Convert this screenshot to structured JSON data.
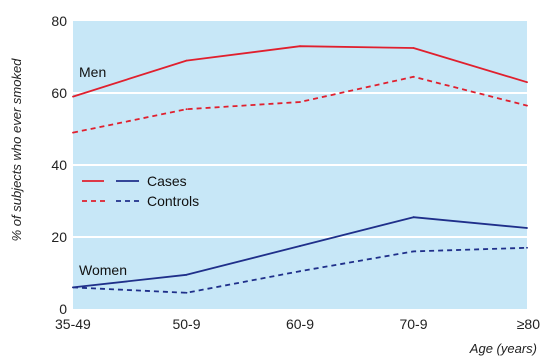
{
  "chart_data": {
    "type": "line",
    "categories": [
      "35-49",
      "50-9",
      "60-9",
      "70-9",
      "≥80"
    ],
    "series": [
      {
        "group": "Men",
        "kind": "Cases",
        "color": "#e0202e",
        "style": "solid",
        "values": [
          59,
          69,
          73,
          72.5,
          63
        ]
      },
      {
        "group": "Men",
        "kind": "Controls",
        "color": "#e0202e",
        "style": "dashed",
        "values": [
          49,
          55.5,
          57.5,
          64.5,
          56.5
        ]
      },
      {
        "group": "Women",
        "kind": "Cases",
        "color": "#1f2f8a",
        "style": "solid",
        "values": [
          6,
          9.5,
          17.5,
          25.5,
          22.5
        ]
      },
      {
        "group": "Women",
        "kind": "Controls",
        "color": "#1f2f8a",
        "style": "dashed",
        "values": [
          6,
          4.5,
          10.5,
          16,
          17
        ]
      }
    ],
    "ylim": [
      0,
      80
    ],
    "yticks": [
      0,
      20,
      40,
      60,
      80
    ],
    "xlabel": "Age (years)",
    "ylabel": "% of subjects who ever smoked",
    "group_labels": [
      "Men",
      "Women"
    ],
    "legend": {
      "placement": "center-left",
      "entries": [
        "Cases",
        "Controls"
      ]
    },
    "grid": true,
    "colors": {
      "plot_background": "#c7e7f7",
      "gridline": "#ffffff"
    }
  }
}
